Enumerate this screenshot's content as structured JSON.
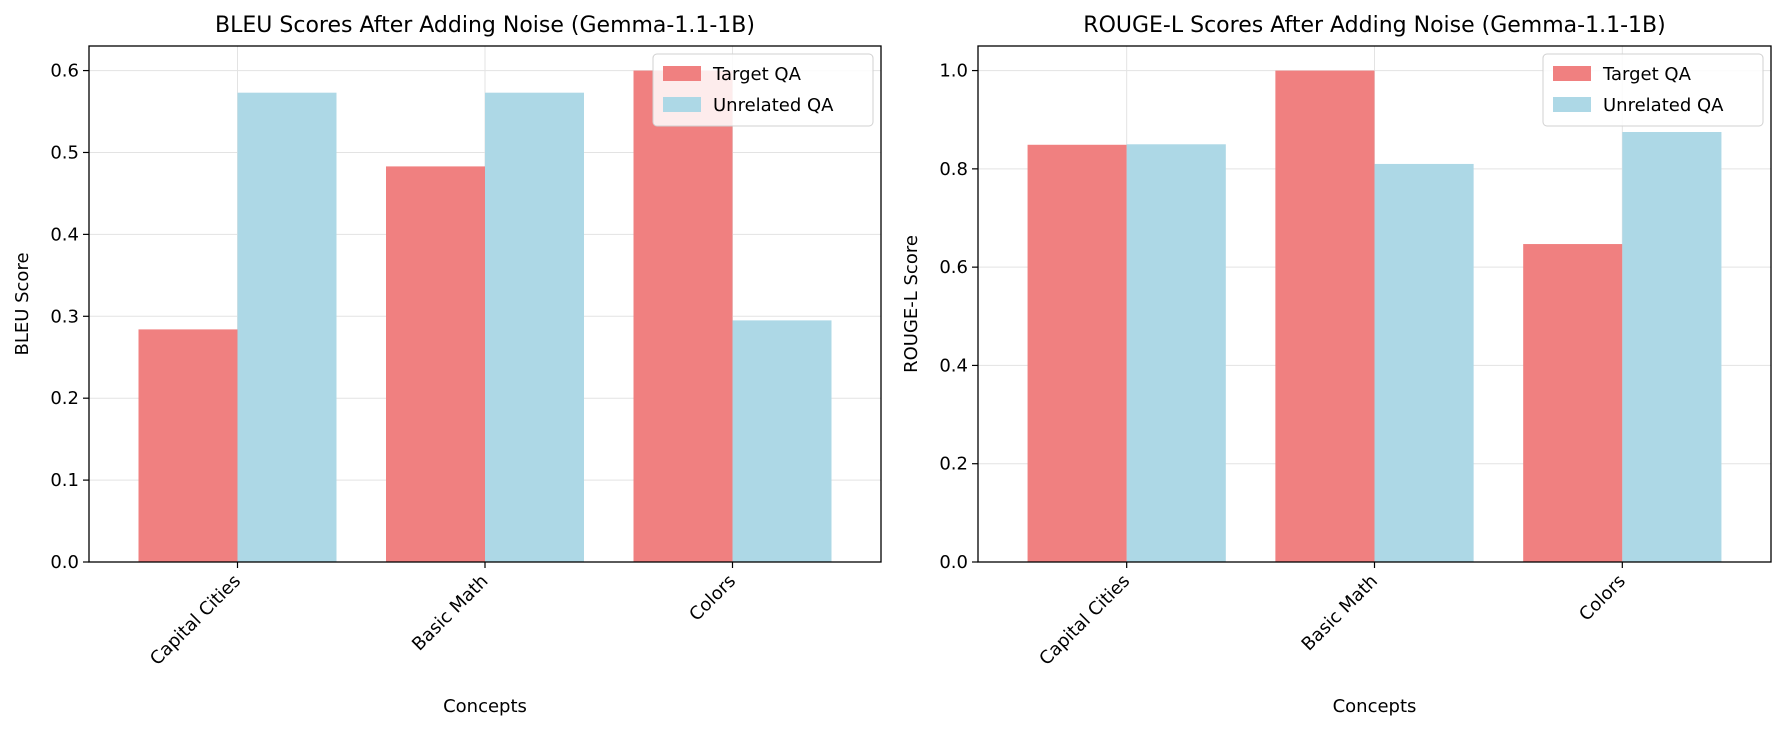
{
  "chart_data": [
    {
      "type": "bar",
      "title": "BLEU Scores After Adding Noise (Gemma-1.1-1B)",
      "xlabel": "Concepts",
      "ylabel": "BLEU Score",
      "categories": [
        "Capital Cities",
        "Basic Math",
        "Colors"
      ],
      "series": [
        {
          "name": "Target QA",
          "color": "#f08080",
          "values": [
            0.284,
            0.483,
            0.6
          ]
        },
        {
          "name": "Unrelated QA",
          "color": "#add8e6",
          "values": [
            0.573,
            0.573,
            0.295
          ]
        }
      ],
      "ylim": [
        0,
        0.63
      ],
      "yticks": [
        0.0,
        0.1,
        0.2,
        0.3,
        0.4,
        0.5,
        0.6
      ],
      "ytick_labels": [
        "0.0",
        "0.1",
        "0.2",
        "0.3",
        "0.4",
        "0.5",
        "0.6"
      ],
      "grid": true,
      "legend_position": "top-right"
    },
    {
      "type": "bar",
      "title": "ROUGE-L Scores After Adding Noise (Gemma-1.1-1B)",
      "xlabel": "Concepts",
      "ylabel": "ROUGE-L Score",
      "categories": [
        "Capital Cities",
        "Basic Math",
        "Colors"
      ],
      "series": [
        {
          "name": "Target QA",
          "color": "#f08080",
          "values": [
            0.849,
            1.0,
            0.647
          ]
        },
        {
          "name": "Unrelated QA",
          "color": "#add8e6",
          "values": [
            0.85,
            0.81,
            0.875
          ]
        }
      ],
      "ylim": [
        0,
        1.05
      ],
      "yticks": [
        0.0,
        0.2,
        0.4,
        0.6,
        0.8,
        1.0
      ],
      "ytick_labels": [
        "0.0",
        "0.2",
        "0.4",
        "0.6",
        "0.8",
        "1.0"
      ],
      "grid": true,
      "legend_position": "top-right"
    }
  ]
}
